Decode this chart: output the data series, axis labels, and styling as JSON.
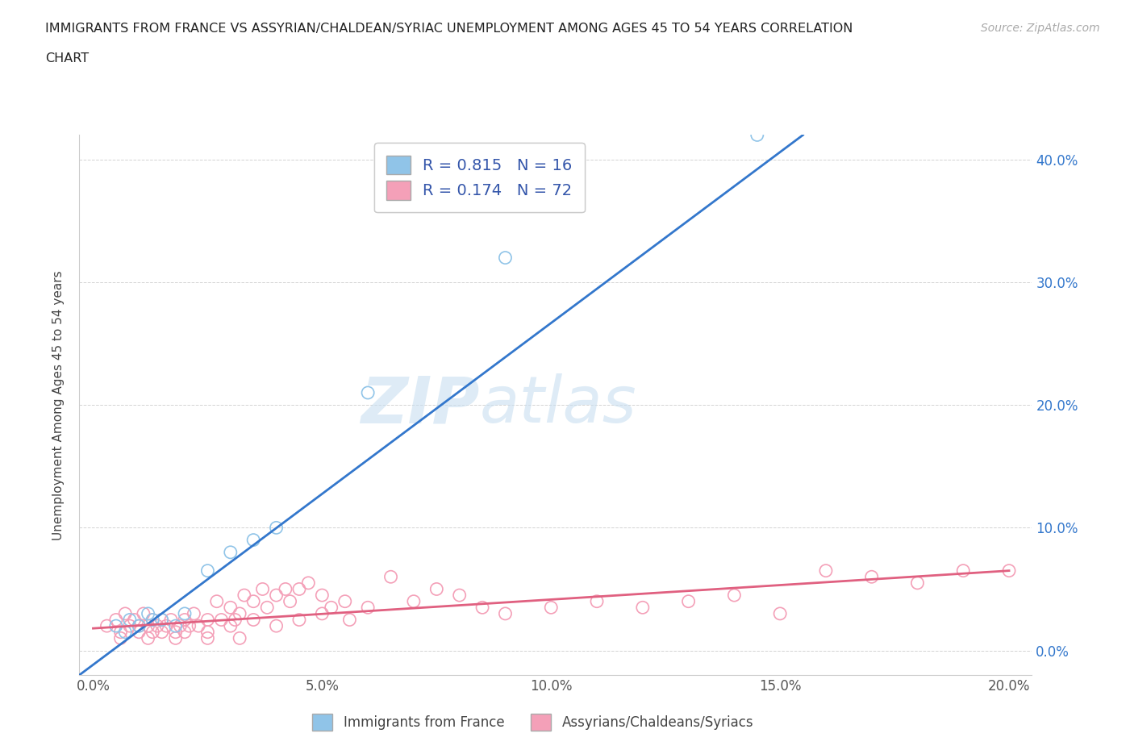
{
  "title_line1": "IMMIGRANTS FROM FRANCE VS ASSYRIAN/CHALDEAN/SYRIAC UNEMPLOYMENT AMONG AGES 45 TO 54 YEARS CORRELATION",
  "title_line2": "CHART",
  "source": "Source: ZipAtlas.com",
  "xlabel_ticks": [
    "0.0%",
    "",
    "5.0%",
    "",
    "10.0%",
    "",
    "15.0%",
    "",
    "20.0%"
  ],
  "xlabel_vals": [
    0.0,
    0.025,
    0.05,
    0.075,
    0.1,
    0.125,
    0.15,
    0.175,
    0.2
  ],
  "ylabel_ticks": [
    "0.0%",
    "10.0%",
    "20.0%",
    "30.0%",
    "40.0%"
  ],
  "ylabel_vals": [
    0.0,
    0.1,
    0.2,
    0.3,
    0.4
  ],
  "xlim": [
    -0.003,
    0.205
  ],
  "ylim": [
    -0.02,
    0.42
  ],
  "watermark_line1": "ZIP",
  "watermark_line2": "atlas",
  "legend_label_blue": "R = 0.815   N = 16",
  "legend_label_pink": "R = 0.174   N = 72",
  "legend_label1": "Immigrants from France",
  "legend_label2": "Assyrians/Chaldeans/Syriacs",
  "blue_color": "#90c4e8",
  "pink_color": "#f4a0b8",
  "regression_blue_color": "#3377cc",
  "regression_pink_color": "#e06080",
  "blue_scatter": [
    [
      0.005,
      0.02
    ],
    [
      0.007,
      0.015
    ],
    [
      0.008,
      0.025
    ],
    [
      0.01,
      0.02
    ],
    [
      0.012,
      0.03
    ],
    [
      0.013,
      0.025
    ],
    [
      0.015,
      0.025
    ],
    [
      0.018,
      0.02
    ],
    [
      0.02,
      0.03
    ],
    [
      0.025,
      0.065
    ],
    [
      0.03,
      0.08
    ],
    [
      0.035,
      0.09
    ],
    [
      0.04,
      0.1
    ],
    [
      0.06,
      0.21
    ],
    [
      0.09,
      0.32
    ],
    [
      0.145,
      0.42
    ]
  ],
  "pink_scatter": [
    [
      0.003,
      0.02
    ],
    [
      0.005,
      0.025
    ],
    [
      0.006,
      0.015
    ],
    [
      0.007,
      0.03
    ],
    [
      0.008,
      0.02
    ],
    [
      0.009,
      0.025
    ],
    [
      0.01,
      0.015
    ],
    [
      0.01,
      0.02
    ],
    [
      0.011,
      0.03
    ],
    [
      0.012,
      0.02
    ],
    [
      0.013,
      0.025
    ],
    [
      0.013,
      0.015
    ],
    [
      0.014,
      0.02
    ],
    [
      0.015,
      0.025
    ],
    [
      0.015,
      0.015
    ],
    [
      0.016,
      0.02
    ],
    [
      0.017,
      0.025
    ],
    [
      0.018,
      0.015
    ],
    [
      0.019,
      0.02
    ],
    [
      0.02,
      0.025
    ],
    [
      0.02,
      0.015
    ],
    [
      0.021,
      0.02
    ],
    [
      0.022,
      0.03
    ],
    [
      0.023,
      0.02
    ],
    [
      0.025,
      0.025
    ],
    [
      0.025,
      0.015
    ],
    [
      0.027,
      0.04
    ],
    [
      0.028,
      0.025
    ],
    [
      0.03,
      0.035
    ],
    [
      0.03,
      0.02
    ],
    [
      0.031,
      0.025
    ],
    [
      0.032,
      0.03
    ],
    [
      0.033,
      0.045
    ],
    [
      0.035,
      0.04
    ],
    [
      0.035,
      0.025
    ],
    [
      0.037,
      0.05
    ],
    [
      0.038,
      0.035
    ],
    [
      0.04,
      0.045
    ],
    [
      0.04,
      0.02
    ],
    [
      0.042,
      0.05
    ],
    [
      0.043,
      0.04
    ],
    [
      0.045,
      0.05
    ],
    [
      0.045,
      0.025
    ],
    [
      0.047,
      0.055
    ],
    [
      0.05,
      0.03
    ],
    [
      0.05,
      0.045
    ],
    [
      0.052,
      0.035
    ],
    [
      0.055,
      0.04
    ],
    [
      0.056,
      0.025
    ],
    [
      0.06,
      0.035
    ],
    [
      0.065,
      0.06
    ],
    [
      0.07,
      0.04
    ],
    [
      0.075,
      0.05
    ],
    [
      0.08,
      0.045
    ],
    [
      0.085,
      0.035
    ],
    [
      0.09,
      0.03
    ],
    [
      0.1,
      0.035
    ],
    [
      0.11,
      0.04
    ],
    [
      0.12,
      0.035
    ],
    [
      0.13,
      0.04
    ],
    [
      0.14,
      0.045
    ],
    [
      0.15,
      0.03
    ],
    [
      0.16,
      0.065
    ],
    [
      0.17,
      0.06
    ],
    [
      0.18,
      0.055
    ],
    [
      0.19,
      0.065
    ],
    [
      0.2,
      0.065
    ],
    [
      0.006,
      0.01
    ],
    [
      0.012,
      0.01
    ],
    [
      0.018,
      0.01
    ],
    [
      0.025,
      0.01
    ],
    [
      0.032,
      0.01
    ]
  ],
  "blue_line_x": [
    -0.003,
    0.155
  ],
  "blue_line_y": [
    -0.02,
    0.42
  ],
  "pink_line_x": [
    0.0,
    0.2
  ],
  "pink_line_y": [
    0.018,
    0.065
  ]
}
